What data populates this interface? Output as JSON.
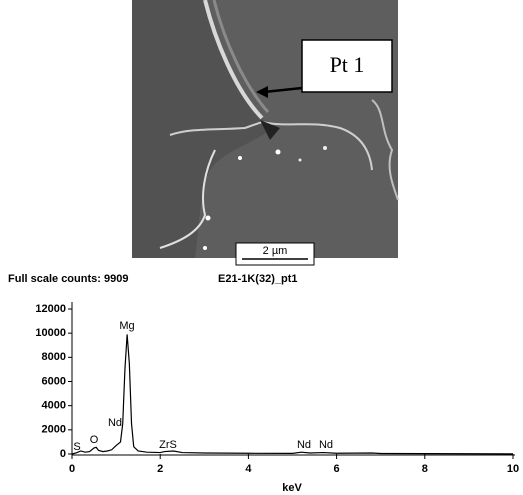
{
  "image": {
    "callout": "Pt 1",
    "scale_bar": "2 µm"
  },
  "header": {
    "left": "Full scale counts: 9909",
    "right": "E21-1K(32)_pt1"
  },
  "chart_data": {
    "type": "line",
    "xlabel": "keV",
    "x": [
      0,
      0.1,
      0.2,
      0.3,
      0.4,
      0.5,
      0.55,
      0.6,
      0.7,
      0.8,
      0.9,
      1.0,
      1.1,
      1.15,
      1.2,
      1.25,
      1.3,
      1.35,
      1.4,
      1.5,
      1.7,
      2.0,
      2.1,
      2.3,
      2.5,
      3,
      4,
      5,
      5.2,
      5.4,
      5.7,
      6,
      6.8,
      7,
      8,
      9,
      10
    ],
    "series": [
      {
        "color": "#000000",
        "values": [
          0,
          100,
          250,
          150,
          200,
          500,
          550,
          300,
          200,
          250,
          350,
          700,
          1000,
          2500,
          7000,
          9900,
          7500,
          2500,
          600,
          250,
          150,
          120,
          200,
          250,
          120,
          80,
          60,
          50,
          150,
          80,
          120,
          60,
          80,
          40,
          30,
          20,
          10
        ]
      }
    ],
    "annotations": [
      "S",
      "O",
      "Nd",
      "Mg",
      "ZrS",
      "Nd",
      "Nd"
    ],
    "xlim": [
      0,
      10
    ],
    "xticks": [
      0,
      2,
      4,
      6,
      8,
      10
    ],
    "ylim": [
      0,
      12000
    ],
    "yticks": [
      0,
      2000,
      4000,
      6000,
      8000,
      10000,
      12000
    ]
  }
}
